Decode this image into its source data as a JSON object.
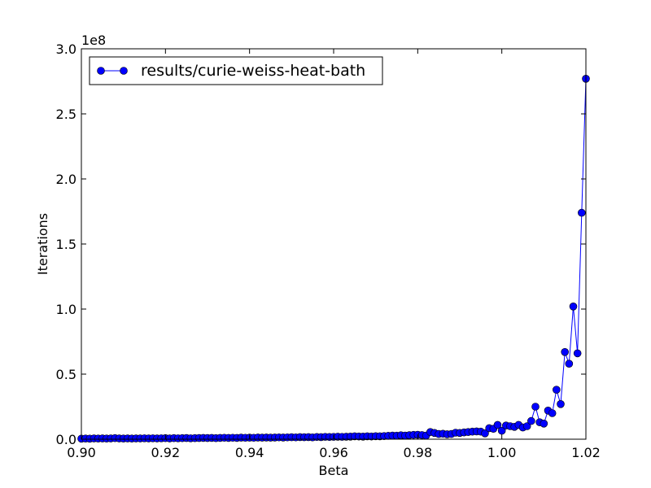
{
  "chart_data": {
    "type": "line",
    "xlabel": "Beta",
    "ylabel": "Iterations",
    "y_offset_text": "1e8",
    "xlim": [
      0.9,
      1.02
    ],
    "ylim": [
      0,
      3.0
    ],
    "x_ticks": [
      "0.90",
      "0.92",
      "0.94",
      "0.96",
      "0.98",
      "1.00",
      "1.02"
    ],
    "y_ticks": [
      "0.0",
      "0.5",
      "1.0",
      "1.5",
      "2.0",
      "2.5",
      "3.0"
    ],
    "y_unit_scale": 100000000,
    "legend_position": "top-left",
    "grid": false,
    "series": [
      {
        "name": "results/curie-weiss-heat-bath",
        "color": "#0000ff",
        "marker": "circle",
        "x": [
          0.9,
          0.901,
          0.902,
          0.903,
          0.904,
          0.905,
          0.906,
          0.907,
          0.908,
          0.909,
          0.91,
          0.911,
          0.912,
          0.913,
          0.914,
          0.915,
          0.916,
          0.917,
          0.918,
          0.919,
          0.92,
          0.921,
          0.922,
          0.923,
          0.924,
          0.925,
          0.926,
          0.927,
          0.928,
          0.929,
          0.93,
          0.931,
          0.932,
          0.933,
          0.934,
          0.935,
          0.936,
          0.937,
          0.938,
          0.939,
          0.94,
          0.941,
          0.942,
          0.943,
          0.944,
          0.945,
          0.946,
          0.947,
          0.948,
          0.949,
          0.95,
          0.951,
          0.952,
          0.953,
          0.954,
          0.955,
          0.956,
          0.957,
          0.958,
          0.959,
          0.96,
          0.961,
          0.962,
          0.963,
          0.964,
          0.965,
          0.966,
          0.967,
          0.968,
          0.969,
          0.97,
          0.971,
          0.972,
          0.973,
          0.974,
          0.975,
          0.976,
          0.977,
          0.978,
          0.979,
          0.98,
          0.981,
          0.982,
          0.983,
          0.984,
          0.985,
          0.986,
          0.987,
          0.988,
          0.989,
          0.99,
          0.991,
          0.992,
          0.993,
          0.994,
          0.995,
          0.996,
          0.997,
          0.998,
          0.999,
          1.0,
          1.001,
          1.002,
          1.003,
          1.004,
          1.005,
          1.006,
          1.007,
          1.008,
          1.009,
          1.01,
          1.011,
          1.012,
          1.013,
          1.014,
          1.015,
          1.016,
          1.017,
          1.018,
          1.019,
          1.02
        ],
        "y": [
          0.004,
          0.005,
          0.004,
          0.006,
          0.005,
          0.006,
          0.005,
          0.006,
          0.008,
          0.006,
          0.005,
          0.006,
          0.005,
          0.006,
          0.006,
          0.007,
          0.006,
          0.007,
          0.006,
          0.007,
          0.008,
          0.006,
          0.008,
          0.007,
          0.008,
          0.009,
          0.007,
          0.008,
          0.009,
          0.01,
          0.009,
          0.01,
          0.008,
          0.01,
          0.011,
          0.01,
          0.011,
          0.01,
          0.012,
          0.011,
          0.012,
          0.011,
          0.013,
          0.012,
          0.013,
          0.012,
          0.013,
          0.014,
          0.013,
          0.014,
          0.015,
          0.014,
          0.016,
          0.015,
          0.016,
          0.014,
          0.017,
          0.016,
          0.018,
          0.017,
          0.018,
          0.019,
          0.018,
          0.019,
          0.02,
          0.022,
          0.021,
          0.02,
          0.022,
          0.021,
          0.023,
          0.022,
          0.024,
          0.026,
          0.028,
          0.027,
          0.03,
          0.028,
          0.031,
          0.033,
          0.034,
          0.032,
          0.028,
          0.055,
          0.048,
          0.04,
          0.042,
          0.038,
          0.04,
          0.05,
          0.048,
          0.052,
          0.055,
          0.058,
          0.06,
          0.058,
          0.045,
          0.085,
          0.08,
          0.11,
          0.065,
          0.105,
          0.1,
          0.095,
          0.11,
          0.09,
          0.1,
          0.14,
          0.25,
          0.13,
          0.12,
          0.22,
          0.2,
          0.38,
          0.27,
          0.67,
          0.58,
          1.02,
          0.66,
          1.74,
          2.77
        ]
      }
    ]
  }
}
